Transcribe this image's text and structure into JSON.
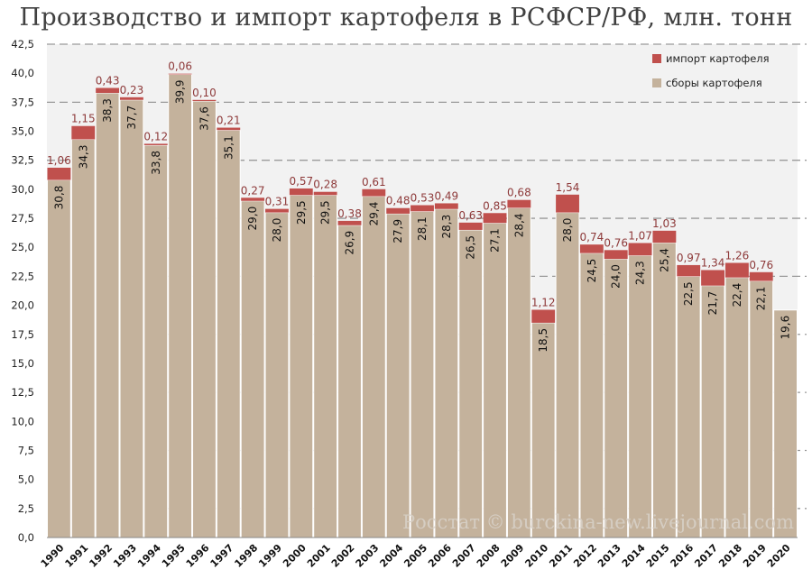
{
  "chart_data": {
    "type": "bar",
    "stacked": true,
    "title": "Производство и импорт картофеля в РСФСР/РФ, млн. тонн",
    "categories": [
      "1990",
      "1991",
      "1992",
      "1993",
      "1994",
      "1995",
      "1996",
      "1997",
      "1998",
      "1999",
      "2000",
      "2001",
      "2002",
      "2003",
      "2004",
      "2005",
      "2006",
      "2007",
      "2008",
      "2009",
      "2010",
      "2011",
      "2012",
      "2013",
      "2014",
      "2015",
      "2016",
      "2017",
      "2018",
      "2019",
      "2020"
    ],
    "series": [
      {
        "name": "сборы картофеля",
        "color": "#c4b29c",
        "values": [
          30.8,
          34.3,
          38.3,
          37.7,
          33.8,
          39.9,
          37.6,
          35.1,
          29.0,
          28.0,
          29.5,
          29.5,
          26.9,
          29.4,
          27.9,
          28.1,
          28.3,
          26.5,
          27.1,
          28.4,
          18.5,
          28.0,
          24.5,
          24.0,
          24.3,
          25.4,
          22.5,
          21.7,
          22.4,
          22.1,
          19.6
        ]
      },
      {
        "name": "импорт картофеля",
        "color": "#c0504d",
        "values": [
          1.06,
          1.15,
          0.43,
          0.23,
          0.12,
          0.06,
          0.1,
          0.21,
          0.27,
          0.31,
          0.57,
          0.28,
          0.38,
          0.61,
          0.48,
          0.53,
          0.49,
          0.63,
          0.85,
          0.68,
          1.12,
          1.54,
          0.74,
          0.76,
          1.07,
          1.03,
          0.97,
          1.34,
          1.26,
          0.76,
          null
        ]
      }
    ],
    "ylim": [
      0,
      42.5
    ],
    "yticks": [
      "0,0",
      "2,5",
      "5,0",
      "7,5",
      "10,0",
      "12,5",
      "15,0",
      "17,5",
      "20,0",
      "22,5",
      "25,0",
      "27,5",
      "30,0",
      "32,5",
      "35,0",
      "37,5",
      "40,0",
      "42,5"
    ],
    "grid": "dashed horizontal",
    "legend": "top-right",
    "xlabel": "",
    "ylabel": ""
  },
  "watermark": "Росстат © burckina-new.livejournal.com"
}
